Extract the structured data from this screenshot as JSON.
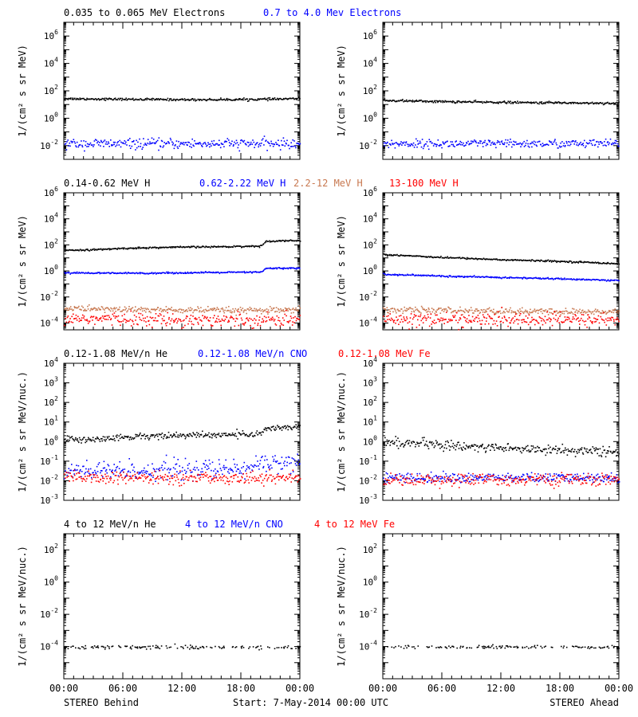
{
  "footer": {
    "left_label": "STEREO Behind",
    "center_label": "Start:  7-May-2014 00:00 UTC",
    "right_label": "STEREO Ahead"
  },
  "time_ticks": [
    "00:00",
    "06:00",
    "12:00",
    "18:00",
    "00:00"
  ],
  "colors": {
    "black": "#000000",
    "blue": "#0000ff",
    "tan": "#c87850",
    "red": "#ff0000"
  },
  "chart_data": [
    {
      "type": "scatter",
      "scale": "log",
      "ylim": [
        0.001,
        10000000
      ],
      "xlim": [
        0,
        24
      ],
      "panel": "electrons-behind",
      "ylabel": "1/(cm² s sr MeV)",
      "ytick_exps": [
        -2,
        0,
        2,
        4,
        6
      ],
      "series": [
        {
          "name": "0.035 to 0.065 MeV Electrons",
          "color": "black",
          "x": [
            0,
            3,
            6,
            9,
            12,
            15,
            18,
            21,
            24
          ],
          "y": [
            30,
            28,
            27,
            26,
            25,
            25,
            26,
            27,
            30
          ],
          "spread": 0.04
        },
        {
          "name": "0.7 to 4.0 Mev Electrons",
          "color": "blue",
          "x": [
            0,
            6,
            12,
            18,
            24
          ],
          "y": [
            0.015,
            0.015,
            0.015,
            0.015,
            0.015
          ],
          "spread": 0.18
        }
      ]
    },
    {
      "type": "scatter",
      "scale": "log",
      "ylim": [
        0.001,
        10000000
      ],
      "xlim": [
        0,
        24
      ],
      "panel": "electrons-ahead",
      "ylabel": "1/(cm² s sr MeV)",
      "ytick_exps": [
        -2,
        0,
        2,
        4,
        6
      ],
      "series": [
        {
          "name": "",
          "color": "black",
          "x": [
            0,
            3,
            6,
            9,
            12,
            15,
            18,
            21,
            24
          ],
          "y": [
            22,
            20,
            18,
            17,
            16,
            15,
            15,
            14,
            14
          ],
          "spread": 0.04
        },
        {
          "name": "",
          "color": "blue",
          "x": [
            0,
            6,
            12,
            18,
            24
          ],
          "y": [
            0.015,
            0.015,
            0.015,
            0.015,
            0.015
          ],
          "spread": 0.15
        }
      ]
    },
    {
      "type": "scatter",
      "scale": "log",
      "ylim": [
        3e-05,
        1000000
      ],
      "xlim": [
        0,
        24
      ],
      "panel": "protons-behind",
      "ylabel": "1/(cm² s sr MeV)",
      "ytick_exps": [
        -4,
        -2,
        0,
        2,
        4,
        6
      ],
      "series": [
        {
          "name": "0.14-0.62 MeV H",
          "color": "black",
          "x": [
            0,
            2,
            4,
            6,
            8,
            10,
            12,
            14,
            16,
            18,
            20,
            20.5,
            21,
            22,
            24
          ],
          "y": [
            45,
            45,
            50,
            60,
            65,
            70,
            75,
            78,
            80,
            85,
            90,
            200,
            220,
            230,
            240
          ],
          "spread": 0.03
        },
        {
          "name": "0.62-2.22 MeV H",
          "color": "blue",
          "x": [
            0,
            4,
            8,
            12,
            16,
            20,
            20.5,
            22,
            24
          ],
          "y": [
            0.8,
            0.75,
            0.75,
            0.8,
            0.85,
            0.9,
            1.7,
            1.8,
            1.8
          ],
          "spread": 0.03
        },
        {
          "name": "2.2-12 MeV H",
          "color": "tan",
          "x": [
            0,
            6,
            12,
            18,
            24
          ],
          "y": [
            0.0015,
            0.0012,
            0.0011,
            0.001,
            0.001
          ],
          "spread": 0.12
        },
        {
          "name": "13-100 MeV H",
          "color": "red",
          "x": [
            0,
            6,
            12,
            18,
            24
          ],
          "y": [
            0.00025,
            0.00022,
            0.0002,
            0.0002,
            0.0002
          ],
          "spread": 0.25
        }
      ]
    },
    {
      "type": "scatter",
      "scale": "log",
      "ylim": [
        3e-05,
        1000000
      ],
      "xlim": [
        0,
        24
      ],
      "panel": "protons-ahead",
      "ylabel": "1/(cm² s sr MeV)",
      "ytick_exps": [
        -4,
        -2,
        0,
        2,
        4,
        6
      ],
      "series": [
        {
          "name": "",
          "color": "black",
          "x": [
            0,
            3,
            6,
            9,
            12,
            15,
            18,
            21,
            24
          ],
          "y": [
            20,
            16,
            12,
            10,
            8,
            7,
            6,
            5,
            4
          ],
          "spread": 0.03
        },
        {
          "name": "",
          "color": "blue",
          "x": [
            0,
            4,
            8,
            12,
            16,
            20,
            24
          ],
          "y": [
            0.6,
            0.5,
            0.4,
            0.35,
            0.3,
            0.25,
            0.2
          ],
          "spread": 0.03
        },
        {
          "name": "",
          "color": "tan",
          "x": [
            0,
            6,
            12,
            18,
            24
          ],
          "y": [
            0.0012,
            0.001,
            0.0009,
            0.0008,
            0.0008
          ],
          "spread": 0.12
        },
        {
          "name": "",
          "color": "red",
          "x": [
            0,
            6,
            12,
            18,
            24
          ],
          "y": [
            0.00025,
            0.0002,
            0.0002,
            0.0002,
            0.0002
          ],
          "spread": 0.25
        }
      ]
    },
    {
      "type": "scatter",
      "scale": "log",
      "ylim": [
        0.001,
        10000
      ],
      "xlim": [
        0,
        24
      ],
      "panel": "ions-behind",
      "ylabel": "1/(cm² s sr MeV/nuc.)",
      "ytick_exps": [
        -3,
        -2,
        -1,
        0,
        1,
        2,
        3,
        4
      ],
      "series": [
        {
          "name": "0.12-1.08 MeV/n He",
          "color": "black",
          "x": [
            0,
            2,
            4,
            6,
            8,
            10,
            12,
            14,
            16,
            18,
            20,
            20.5,
            22,
            24
          ],
          "y": [
            1.5,
            1.3,
            1.5,
            1.8,
            2,
            2.2,
            2.2,
            2.3,
            2.4,
            2.5,
            2.6,
            5,
            5.5,
            6
          ],
          "spread": 0.08
        },
        {
          "name": "0.12-1.08 MeV/n CNO",
          "color": "blue",
          "x": [
            0,
            6,
            12,
            18,
            20.5,
            24
          ],
          "y": [
            0.03,
            0.035,
            0.04,
            0.04,
            0.09,
            0.1
          ],
          "spread": 0.25
        },
        {
          "name": "0.12-1.08 MeV Fe",
          "color": "red",
          "x": [
            0,
            6,
            12,
            18,
            24
          ],
          "y": [
            0.015,
            0.015,
            0.015,
            0.015,
            0.015
          ],
          "spread": 0.15
        }
      ]
    },
    {
      "type": "scatter",
      "scale": "log",
      "ylim": [
        0.001,
        10000
      ],
      "xlim": [
        0,
        24
      ],
      "panel": "ions-ahead",
      "ylabel": "1/(cm² s sr MeV/nuc.)",
      "ytick_exps": [
        -3,
        -2,
        -1,
        0,
        1,
        2,
        3,
        4
      ],
      "series": [
        {
          "name": "",
          "color": "black",
          "x": [
            0,
            3,
            6,
            9,
            12,
            15,
            18,
            21,
            24
          ],
          "y": [
            1,
            0.9,
            0.7,
            0.6,
            0.5,
            0.45,
            0.4,
            0.35,
            0.3
          ],
          "spread": 0.12
        },
        {
          "name": "",
          "color": "blue",
          "x": [
            0,
            6,
            12,
            18,
            24
          ],
          "y": [
            0.015,
            0.015,
            0.015,
            0.015,
            0.015
          ],
          "spread": 0.12
        },
        {
          "name": "",
          "color": "red",
          "x": [
            0,
            6,
            12,
            18,
            24
          ],
          "y": [
            0.012,
            0.012,
            0.012,
            0.012,
            0.012
          ],
          "spread": 0.15
        }
      ]
    },
    {
      "type": "scatter",
      "scale": "log",
      "ylim": [
        1e-06,
        1000
      ],
      "xlim": [
        0,
        24
      ],
      "panel": "high-ions-behind",
      "ylabel": "1/(cm² s sr MeV/nuc.)",
      "ytick_exps": [
        -4,
        -2,
        0,
        2
      ],
      "series": [
        {
          "name": "4 to 12 MeV/n He",
          "color": "black",
          "x": [
            0,
            6,
            12,
            18,
            24
          ],
          "y": [
            0.0001,
            0.0001,
            0.0001,
            0.0001,
            0.0001
          ],
          "spread": 0.06
        },
        {
          "name": "4 to 12 MeV/n CNO",
          "color": "blue",
          "x": [
            0,
            24
          ],
          "y": [
            1e-06,
            1e-06
          ],
          "spread": 0
        },
        {
          "name": "4 to 12 MeV Fe",
          "color": "red",
          "x": [
            0,
            24
          ],
          "y": [
            1e-06,
            1e-06
          ],
          "spread": 0
        }
      ]
    },
    {
      "type": "scatter",
      "scale": "log",
      "ylim": [
        1e-06,
        1000
      ],
      "xlim": [
        0,
        24
      ],
      "panel": "high-ions-ahead",
      "ylabel": "1/(cm² s sr MeV/nuc.)",
      "ytick_exps": [
        -4,
        -2,
        0,
        2
      ],
      "series": [
        {
          "name": "",
          "color": "black",
          "x": [
            0,
            6,
            12,
            18,
            24
          ],
          "y": [
            0.0001,
            0.0001,
            0.0001,
            0.0001,
            0.0001
          ],
          "spread": 0.06
        }
      ]
    }
  ]
}
